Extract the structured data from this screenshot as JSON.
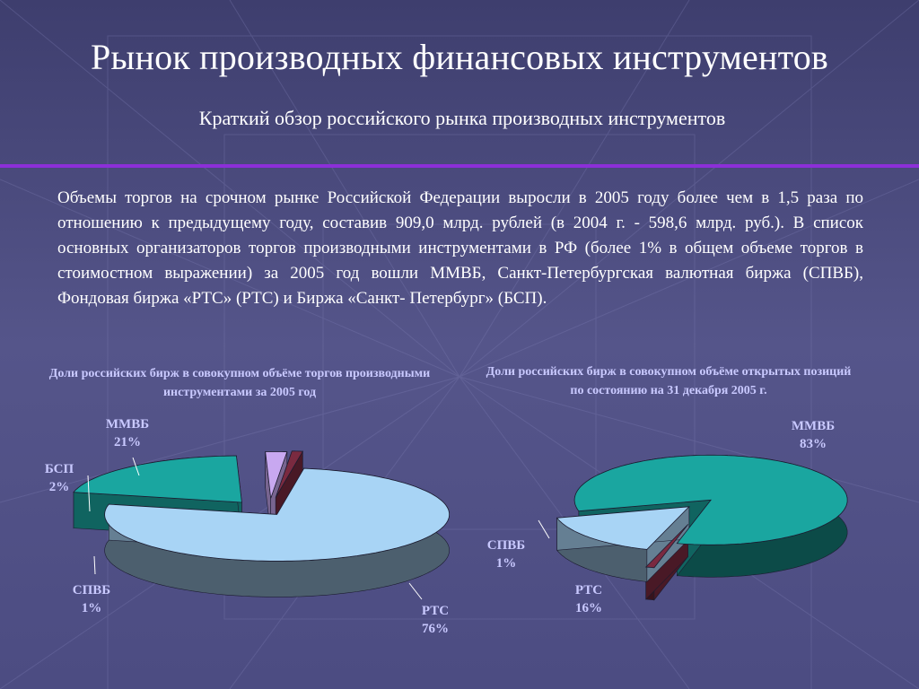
{
  "title": "Рынок производных финансовых инструментов",
  "subtitle": "Краткий обзор российского рынка производных инструментов",
  "body": "Объемы торгов на срочном рынке Российской Федерации выросли в 2005 году более чем в 1,5 раза по отношению к предыдущему году, составив 909,0 млрд. рублей (в 2004 г. - 598,6 млрд. руб.). В список основных организаторов торгов производными инструментами в РФ (более 1% в общем объеме торгов в стоимостном выражении) за 2005 год вошли ММВБ, Санкт-Петербургская валютная биржа (СПВБ), Фондовая биржа «РТС» (РТС) и Биржа «Санкт- Петербург» (БСП).",
  "colors": {
    "ММВБ": "#1aa6a0",
    "РТС": "#a8d4f5",
    "СПВБ": "#7a2a40",
    "БСП": "#c8a8f0",
    "label": "#c9c9ff",
    "rule": "#8c2fd8"
  },
  "chart_data": [
    {
      "type": "pie",
      "title": "Доли российских бирж в совокупном объёме торгов производными инструментами за 2005 год",
      "categories": [
        "ММВБ",
        "БСП",
        "СПВБ",
        "РТС"
      ],
      "values": [
        21,
        2,
        1,
        76
      ],
      "labels": [
        {
          "name": "ММВБ",
          "pct": "21%"
        },
        {
          "name": "БСП",
          "pct": "2%"
        },
        {
          "name": "СПВБ",
          "pct": "1%"
        },
        {
          "name": "РТС",
          "pct": "76%"
        }
      ],
      "style": "3d exploded pie"
    },
    {
      "type": "pie",
      "title": "Доли российских бирж в совокупном объёме открытых позиций по состоянию на 31 декабря 2005 г.",
      "categories": [
        "ММВБ",
        "СПВБ",
        "РТС"
      ],
      "values": [
        83,
        1,
        16
      ],
      "labels": [
        {
          "name": "ММВБ",
          "pct": "83%"
        },
        {
          "name": "СПВБ",
          "pct": "1%"
        },
        {
          "name": "РТС",
          "pct": "16%"
        }
      ],
      "style": "3d exploded pie"
    }
  ]
}
